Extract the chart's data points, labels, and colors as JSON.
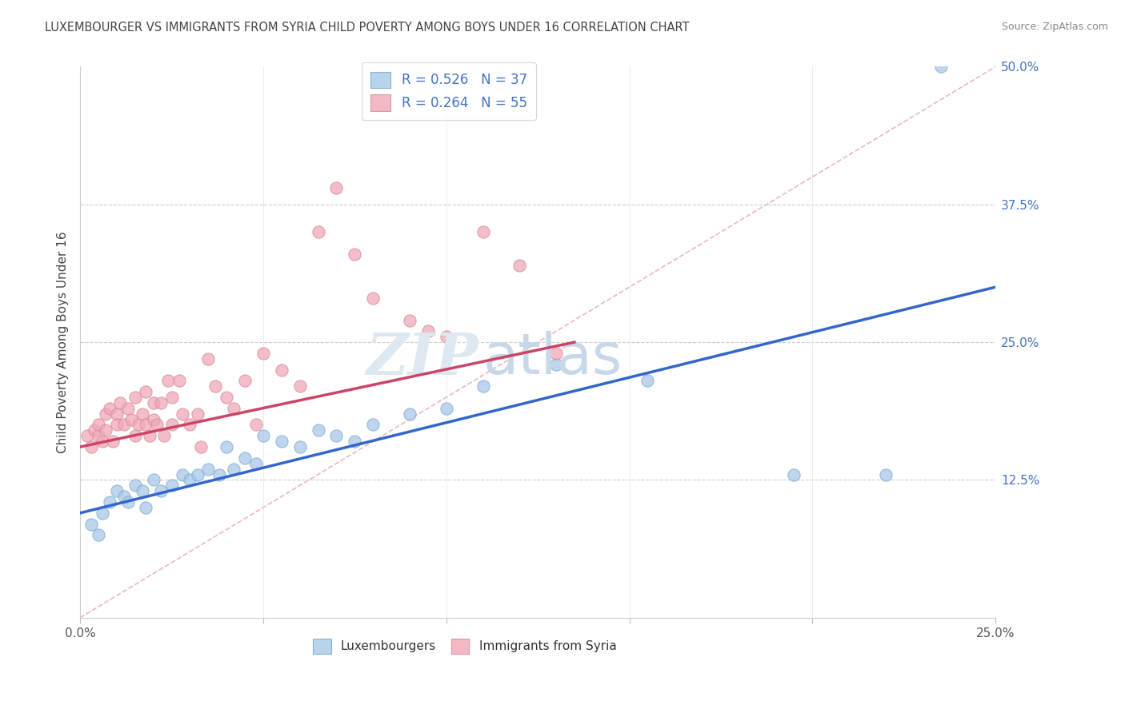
{
  "title": "LUXEMBOURGER VS IMMIGRANTS FROM SYRIA CHILD POVERTY AMONG BOYS UNDER 16 CORRELATION CHART",
  "source": "Source: ZipAtlas.com",
  "ylabel": "Child Poverty Among Boys Under 16",
  "xlim": [
    0,
    0.25
  ],
  "ylim": [
    0,
    0.5
  ],
  "xticks": [
    0.0,
    0.05,
    0.1,
    0.15,
    0.2,
    0.25
  ],
  "xticklabels": [
    "0.0%",
    "",
    "",
    "",
    "",
    "25.0%"
  ],
  "yticks_right": [
    0.125,
    0.25,
    0.375,
    0.5
  ],
  "ytick_labels_right": [
    "12.5%",
    "25.0%",
    "37.5%",
    "50.0%"
  ],
  "legend_r1": "R = 0.526",
  "legend_n1": "N = 37",
  "legend_r2": "R = 0.264",
  "legend_n2": "N = 55",
  "blue_color": "#a8c8e8",
  "pink_color": "#f0a8b8",
  "blue_line_color": "#3366cc",
  "pink_line_color": "#cc4466",
  "grid_color": "#dddddd",
  "diag_color": "#e8b0b8",
  "watermark_zip_color": "#dde8f0",
  "watermark_atlas_color": "#c8d8e8",
  "blue_scatter_x": [
    0.003,
    0.005,
    0.006,
    0.008,
    0.01,
    0.012,
    0.013,
    0.015,
    0.017,
    0.018,
    0.02,
    0.022,
    0.025,
    0.028,
    0.03,
    0.032,
    0.035,
    0.038,
    0.04,
    0.042,
    0.045,
    0.048,
    0.05,
    0.055,
    0.06,
    0.065,
    0.07,
    0.075,
    0.08,
    0.09,
    0.1,
    0.11,
    0.13,
    0.155,
    0.195,
    0.22,
    0.235
  ],
  "blue_scatter_y": [
    0.085,
    0.075,
    0.095,
    0.105,
    0.115,
    0.11,
    0.105,
    0.12,
    0.115,
    0.1,
    0.125,
    0.115,
    0.12,
    0.13,
    0.125,
    0.13,
    0.135,
    0.13,
    0.155,
    0.135,
    0.145,
    0.14,
    0.165,
    0.16,
    0.155,
    0.17,
    0.165,
    0.16,
    0.175,
    0.185,
    0.19,
    0.21,
    0.23,
    0.215,
    0.13,
    0.13,
    0.5
  ],
  "pink_scatter_x": [
    0.002,
    0.003,
    0.004,
    0.005,
    0.005,
    0.006,
    0.007,
    0.007,
    0.008,
    0.009,
    0.01,
    0.01,
    0.011,
    0.012,
    0.013,
    0.014,
    0.015,
    0.015,
    0.016,
    0.017,
    0.018,
    0.018,
    0.019,
    0.02,
    0.02,
    0.021,
    0.022,
    0.023,
    0.024,
    0.025,
    0.025,
    0.027,
    0.028,
    0.03,
    0.032,
    0.033,
    0.035,
    0.037,
    0.04,
    0.042,
    0.045,
    0.048,
    0.05,
    0.055,
    0.06,
    0.065,
    0.07,
    0.075,
    0.08,
    0.09,
    0.095,
    0.1,
    0.11,
    0.12,
    0.13
  ],
  "pink_scatter_y": [
    0.165,
    0.155,
    0.17,
    0.165,
    0.175,
    0.16,
    0.185,
    0.17,
    0.19,
    0.16,
    0.185,
    0.175,
    0.195,
    0.175,
    0.19,
    0.18,
    0.2,
    0.165,
    0.175,
    0.185,
    0.175,
    0.205,
    0.165,
    0.195,
    0.18,
    0.175,
    0.195,
    0.165,
    0.215,
    0.2,
    0.175,
    0.215,
    0.185,
    0.175,
    0.185,
    0.155,
    0.235,
    0.21,
    0.2,
    0.19,
    0.215,
    0.175,
    0.24,
    0.225,
    0.21,
    0.35,
    0.39,
    0.33,
    0.29,
    0.27,
    0.26,
    0.255,
    0.35,
    0.32,
    0.24
  ],
  "blue_trend_x": [
    0.0,
    0.25
  ],
  "blue_trend_y": [
    0.095,
    0.3
  ],
  "pink_trend_x": [
    0.0,
    0.135
  ],
  "pink_trend_y": [
    0.155,
    0.25
  ]
}
